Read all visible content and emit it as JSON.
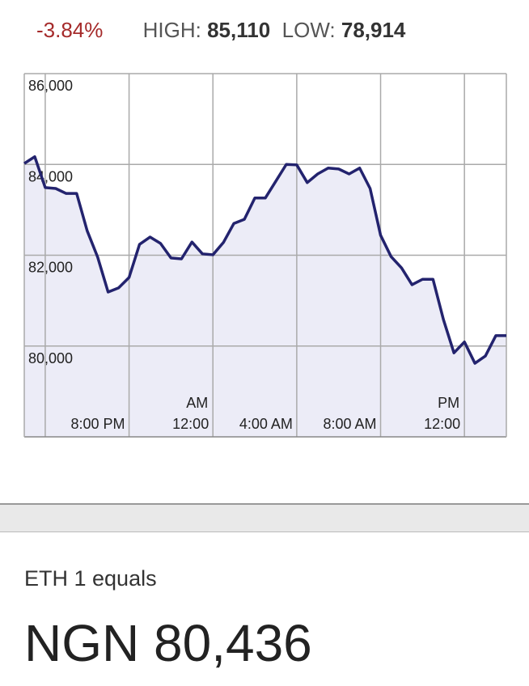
{
  "header": {
    "change": "-3.84%",
    "high_label": "HIGH:",
    "high": "85,110",
    "low_label": "LOW:",
    "low": "78,914"
  },
  "chart_data": {
    "type": "line",
    "x": [
      15,
      15.5,
      16,
      16.5,
      17,
      17.5,
      18,
      18.5,
      19,
      19.5,
      20,
      20.5,
      21,
      21.5,
      22,
      22.5,
      23,
      23.5,
      24,
      24.5,
      25,
      25.5,
      26,
      26.5,
      27,
      27.5,
      28,
      28.5,
      29,
      29.5,
      30,
      30.5,
      31,
      31.5,
      32,
      32.5,
      33,
      33.5,
      34,
      34.5,
      35,
      35.5,
      36,
      36.5,
      37,
      37.5,
      38
    ],
    "series": [
      {
        "color": "#23236e",
        "fill": "#ececf7",
        "values": [
          84020,
          84170,
          83490,
          83470,
          83360,
          83360,
          82540,
          81960,
          81190,
          81280,
          81510,
          82240,
          82400,
          82260,
          81940,
          81920,
          82290,
          82030,
          82010,
          82280,
          82700,
          82790,
          83260,
          83260,
          83630,
          84000,
          83990,
          83600,
          83790,
          83920,
          83900,
          83790,
          83920,
          83470,
          82440,
          81970,
          81720,
          81350,
          81470,
          81470,
          80580,
          79850,
          80090,
          79620,
          79780,
          80230,
          80230
        ]
      }
    ],
    "xlim": [
      15,
      38
    ],
    "xgrid": [
      16,
      20,
      24,
      28,
      32,
      36
    ],
    "xticks": [
      {
        "value": 20,
        "label": "8:00 PM"
      },
      {
        "value": 24,
        "label": "12:00"
      },
      {
        "value": 28,
        "label": "4:00 AM"
      },
      {
        "value": 32,
        "label": "8:00 AM"
      },
      {
        "value": 36,
        "label": "12:00"
      }
    ],
    "period_labels": [
      {
        "value": 24,
        "label": "AM"
      },
      {
        "value": 36,
        "label": "PM"
      }
    ],
    "ylim": [
      78000,
      86000
    ],
    "yticks": [
      {
        "value": 80000,
        "label": "80,000"
      },
      {
        "value": 82000,
        "label": "82,000"
      },
      {
        "value": 84000,
        "label": "84,000"
      },
      {
        "value": 86000,
        "label": "86,000"
      }
    ],
    "grid": true
  },
  "footer": {
    "caption": "ETH 1 equals",
    "amount": "NGN 80,436"
  }
}
